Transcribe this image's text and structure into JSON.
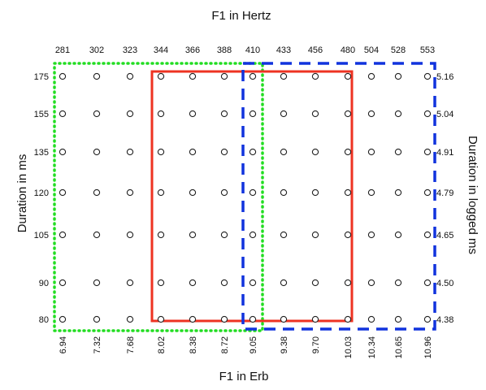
{
  "chart_data": {
    "type": "scatter",
    "top_axis": {
      "label": "F1 in Hertz",
      "ticks": [
        "281",
        "302",
        "323",
        "344",
        "366",
        "388",
        "410",
        "433",
        "456",
        "480",
        "504",
        "528",
        "553"
      ]
    },
    "bottom_axis": {
      "label": "F1 in Erb",
      "ticks": [
        "6.94",
        "7.32",
        "7.68",
        "8.02",
        "8.38",
        "8.72",
        "9.05",
        "9.38",
        "9.70",
        "10.03",
        "10.34",
        "10.65",
        "10.96"
      ]
    },
    "left_axis": {
      "label": "Duration in ms",
      "ticks": [
        "175",
        "155",
        "135",
        "120",
        "105",
        "90",
        "80"
      ]
    },
    "right_axis": {
      "label": "Duration in logged ms",
      "ticks": [
        "5.16",
        "5.04",
        "4.91",
        "4.79",
        "4.65",
        "4.50",
        "4.38"
      ]
    },
    "grid": {
      "columns": 13,
      "rows": 7,
      "marker": "open-circle"
    },
    "regions": [
      {
        "style": "dotted",
        "color": "#22dd22",
        "col_start": 0,
        "col_end": 6
      },
      {
        "style": "solid",
        "color": "#ee3322",
        "col_start": 3,
        "col_end": 9
      },
      {
        "style": "dashed",
        "color": "#1133dd",
        "col_start": 6,
        "col_end": 12
      }
    ]
  }
}
